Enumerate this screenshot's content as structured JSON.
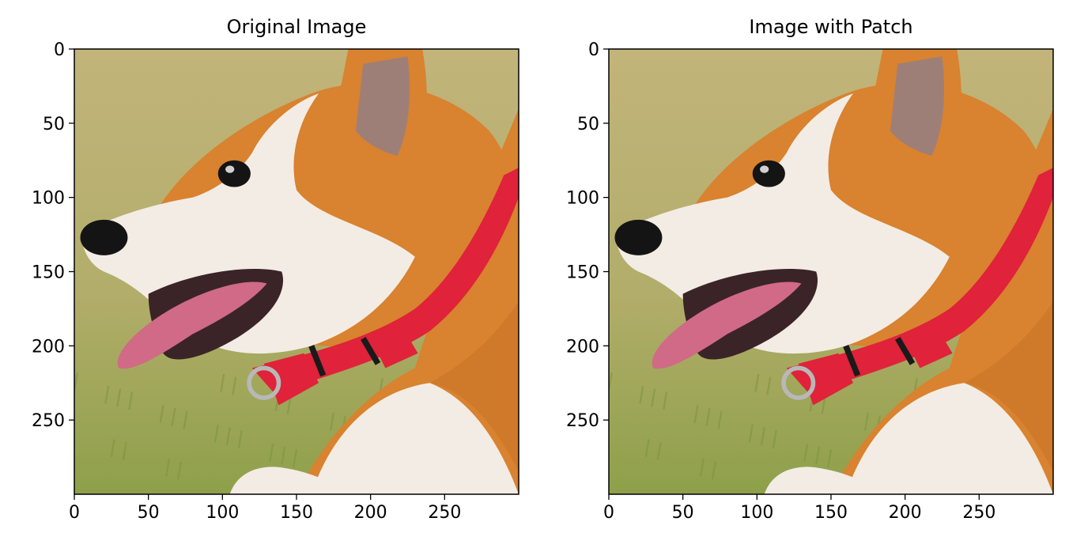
{
  "chart_data": [
    {
      "type": "image",
      "title": "Original Image",
      "image_description": "corgi-dog-head-profile",
      "xlim": [
        0,
        300
      ],
      "ylim": [
        300,
        0
      ],
      "x_ticks": [
        0,
        50,
        100,
        150,
        200,
        250
      ],
      "y_ticks": [
        0,
        50,
        100,
        150,
        200,
        250
      ],
      "xlabel": "",
      "ylabel": "",
      "grid": false
    },
    {
      "type": "image",
      "title": "Image with Patch",
      "image_description": "corgi-dog-head-profile",
      "xlim": [
        0,
        300
      ],
      "ylim": [
        300,
        0
      ],
      "x_ticks": [
        0,
        50,
        100,
        150,
        200,
        250
      ],
      "y_ticks": [
        0,
        50,
        100,
        150,
        200,
        250
      ],
      "xlabel": "",
      "ylabel": "",
      "grid": false
    }
  ],
  "colors": {
    "background_grass_top": "#c2b47a",
    "background_grass_bottom": "#8ea04a",
    "fur_orange": "#d9822f",
    "fur_white": "#f3ece4",
    "collar_red": "#e0223a",
    "nose": "#141414",
    "tongue": "#d06a86"
  }
}
